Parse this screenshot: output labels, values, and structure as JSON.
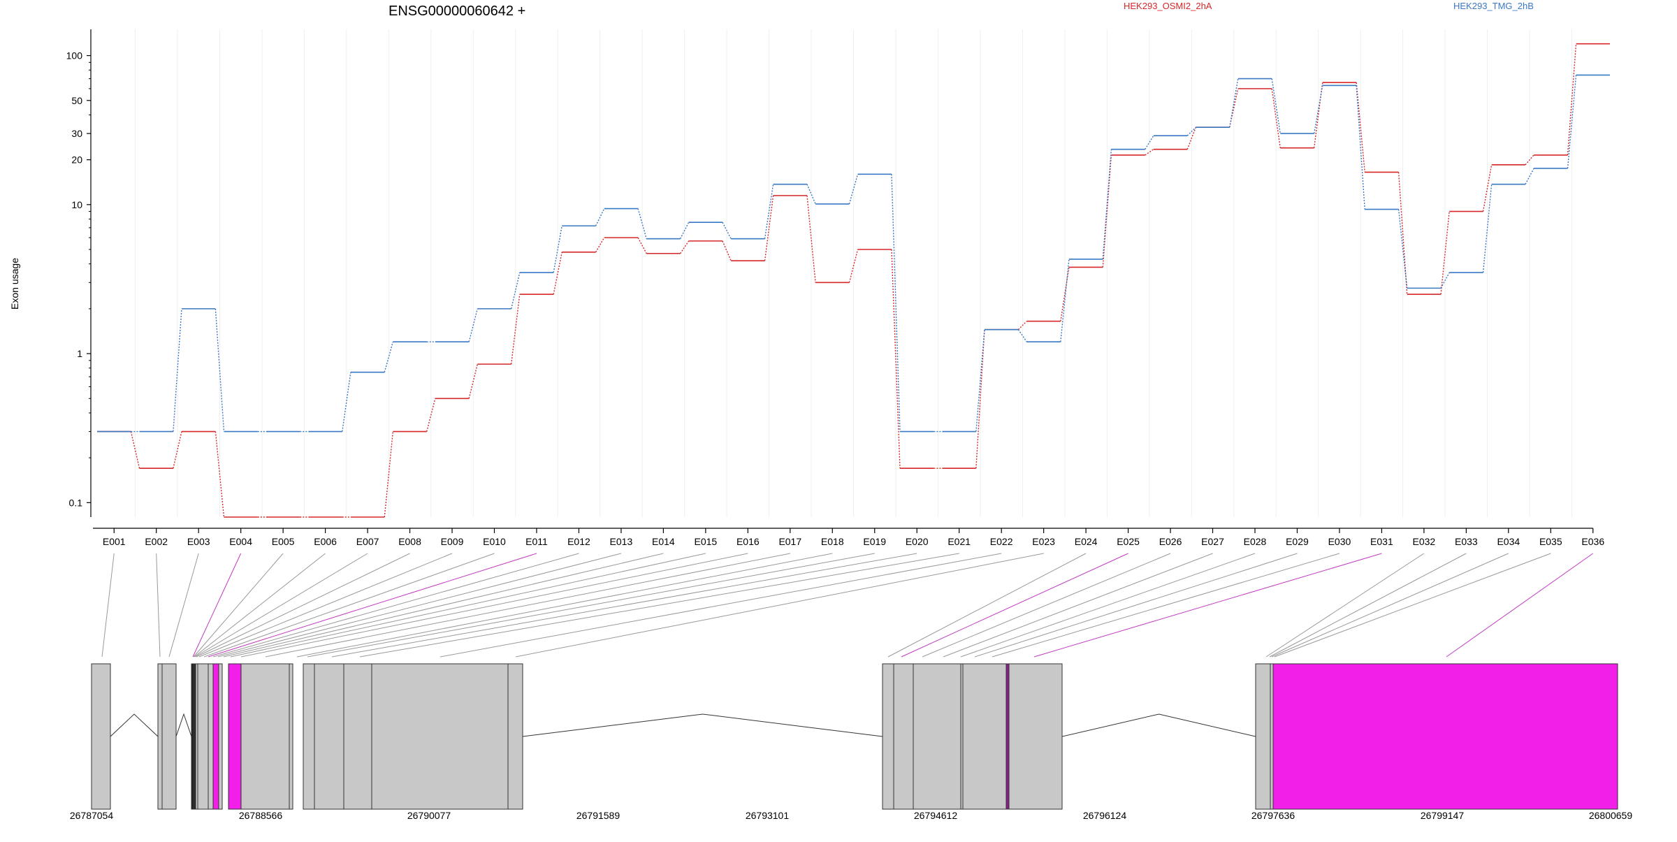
{
  "chart_data": {
    "type": "line",
    "title": "ENSG00000060642 +",
    "ylabel": "Exon usage",
    "y_scale": "log",
    "ylim": [
      0.08,
      150
    ],
    "y_ticks": [
      0.1,
      1,
      10,
      20,
      30,
      50,
      100
    ],
    "y_tick_labels": [
      "0.1",
      "1",
      "10",
      "20",
      "30",
      "50",
      "100"
    ],
    "grid": true,
    "legend_position": "top",
    "categories": [
      "E001",
      "E002",
      "E003",
      "E004",
      "E005",
      "E006",
      "E007",
      "E008",
      "E009",
      "E010",
      "E011",
      "E012",
      "E013",
      "E014",
      "E015",
      "E016",
      "E017",
      "E018",
      "E019",
      "E020",
      "E021",
      "E022",
      "E023",
      "E024",
      "E025",
      "E026",
      "E027",
      "E028",
      "E029",
      "E030",
      "E031",
      "E032",
      "E033",
      "E034",
      "E035",
      "E036"
    ],
    "series": [
      {
        "name": "HEK293_OSMI2_2hA",
        "color": "#d62728",
        "values": [
          0.3,
          0.17,
          0.3,
          0.08,
          0.08,
          0.08,
          0.08,
          0.3,
          0.5,
          0.85,
          2.5,
          4.8,
          6.0,
          4.7,
          5.7,
          4.2,
          11.5,
          3.0,
          5.0,
          0.17,
          0.17,
          1.45,
          1.65,
          3.8,
          21.5,
          23.5,
          33.0,
          60.0,
          24.0,
          66.0,
          16.5,
          2.5,
          9.0,
          18.5,
          21.5,
          120.0
        ]
      },
      {
        "name": "HEK293_TMG_2hB",
        "color": "#3a78c4",
        "values": [
          0.3,
          0.3,
          2.0,
          0.3,
          0.3,
          0.3,
          0.75,
          1.2,
          1.2,
          2.0,
          3.5,
          7.2,
          9.4,
          5.9,
          7.6,
          5.9,
          13.7,
          10.1,
          16.0,
          0.3,
          0.3,
          1.45,
          1.2,
          4.3,
          23.5,
          29.0,
          33.0,
          70.0,
          30.0,
          63.0,
          9.3,
          2.75,
          3.5,
          13.7,
          17.5,
          74.0
        ]
      }
    ],
    "gene_model": {
      "coordinate_labels": [
        "26787054",
        "26788566",
        "26790077",
        "26791589",
        "26793101",
        "26794612",
        "26796124",
        "26797636",
        "26799147",
        "26800659"
      ],
      "highlight_color": "#f21fe8",
      "exon_color": "#c8c8c8",
      "highlighted_exons": [
        "E004",
        "E011",
        "E025",
        "E031",
        "E036"
      ]
    }
  }
}
